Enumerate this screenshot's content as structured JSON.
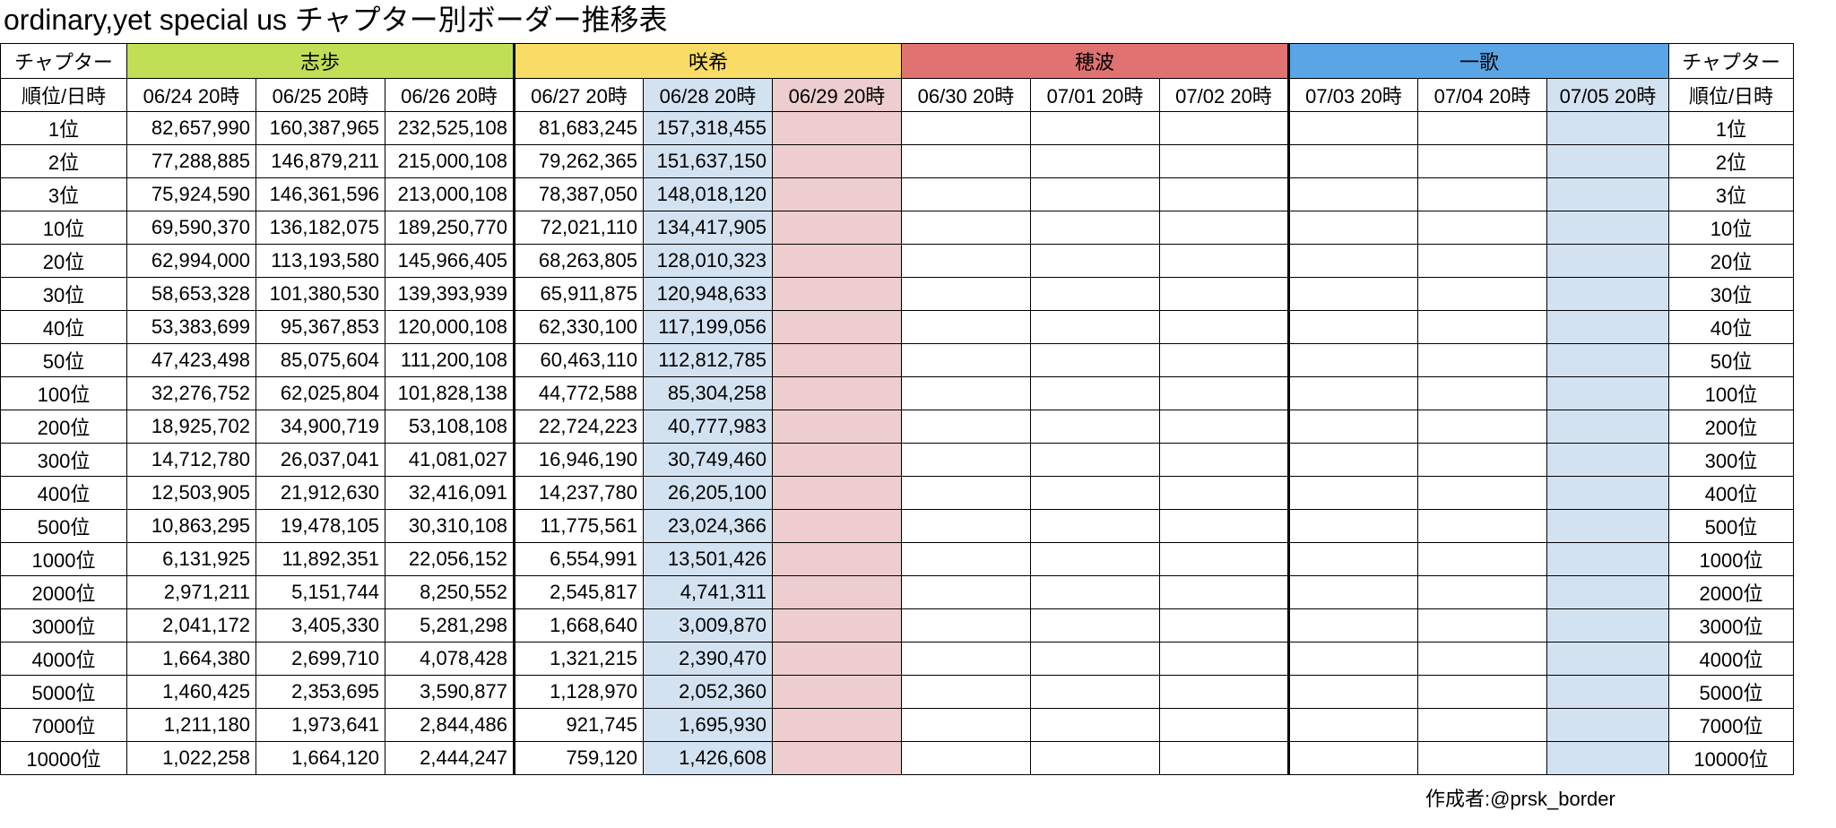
{
  "title": "ordinary,yet special us チャプター別ボーダー推移表",
  "header": {
    "chapter_label": "チャプター",
    "rank_date_label": "順位/日時"
  },
  "chapters": [
    {
      "name": "志歩",
      "color": "#c1df55",
      "span": 3
    },
    {
      "name": "咲希",
      "color": "#f9dc65",
      "span": 3
    },
    {
      "name": "穂波",
      "color": "#e07271",
      "span": 3
    },
    {
      "name": "一歌",
      "color": "#5aa5e6",
      "span": 3
    }
  ],
  "dates": [
    "06/24 20時",
    "06/25 20時",
    "06/26 20時",
    "06/27 20時",
    "06/28 20時",
    "06/29 20時",
    "06/30 20時",
    "07/01 20時",
    "07/02 20時",
    "07/03 20時",
    "07/04 20時",
    "07/05 20時"
  ],
  "rows": [
    {
      "rank": "1位",
      "values": [
        "82,657,990",
        "160,387,965",
        "232,525,108",
        "81,683,245",
        "157,318,455"
      ]
    },
    {
      "rank": "2位",
      "values": [
        "77,288,885",
        "146,879,211",
        "215,000,108",
        "79,262,365",
        "151,637,150"
      ]
    },
    {
      "rank": "3位",
      "values": [
        "75,924,590",
        "146,361,596",
        "213,000,108",
        "78,387,050",
        "148,018,120"
      ]
    },
    {
      "rank": "10位",
      "values": [
        "69,590,370",
        "136,182,075",
        "189,250,770",
        "72,021,110",
        "134,417,905"
      ]
    },
    {
      "rank": "20位",
      "values": [
        "62,994,000",
        "113,193,580",
        "145,966,405",
        "68,263,805",
        "128,010,323"
      ]
    },
    {
      "rank": "30位",
      "values": [
        "58,653,328",
        "101,380,530",
        "139,393,939",
        "65,911,875",
        "120,948,633"
      ]
    },
    {
      "rank": "40位",
      "values": [
        "53,383,699",
        "95,367,853",
        "120,000,108",
        "62,330,100",
        "117,199,056"
      ]
    },
    {
      "rank": "50位",
      "values": [
        "47,423,498",
        "85,075,604",
        "111,200,108",
        "60,463,110",
        "112,812,785"
      ]
    },
    {
      "rank": "100位",
      "values": [
        "32,276,752",
        "62,025,804",
        "101,828,138",
        "44,772,588",
        "85,304,258"
      ]
    },
    {
      "rank": "200位",
      "values": [
        "18,925,702",
        "34,900,719",
        "53,108,108",
        "22,724,223",
        "40,777,983"
      ]
    },
    {
      "rank": "300位",
      "values": [
        "14,712,780",
        "26,037,041",
        "41,081,027",
        "16,946,190",
        "30,749,460"
      ]
    },
    {
      "rank": "400位",
      "values": [
        "12,503,905",
        "21,912,630",
        "32,416,091",
        "14,237,780",
        "26,205,100"
      ]
    },
    {
      "rank": "500位",
      "values": [
        "10,863,295",
        "19,478,105",
        "30,310,108",
        "11,775,561",
        "23,024,366"
      ]
    },
    {
      "rank": "1000位",
      "values": [
        "6,131,925",
        "11,892,351",
        "22,056,152",
        "6,554,991",
        "13,501,426"
      ]
    },
    {
      "rank": "2000位",
      "values": [
        "2,971,211",
        "5,151,744",
        "8,250,552",
        "2,545,817",
        "4,741,311"
      ]
    },
    {
      "rank": "3000位",
      "values": [
        "2,041,172",
        "3,405,330",
        "5,281,298",
        "1,668,640",
        "3,009,870"
      ]
    },
    {
      "rank": "4000位",
      "values": [
        "1,664,380",
        "2,699,710",
        "4,078,428",
        "1,321,215",
        "2,390,470"
      ]
    },
    {
      "rank": "5000位",
      "values": [
        "1,460,425",
        "2,353,695",
        "3,590,877",
        "1,128,970",
        "2,052,360"
      ]
    },
    {
      "rank": "7000位",
      "values": [
        "1,211,180",
        "1,973,641",
        "2,844,486",
        "921,745",
        "1,695,930"
      ]
    },
    {
      "rank": "10000位",
      "values": [
        "1,022,258",
        "1,664,120",
        "2,444,247",
        "759,120",
        "1,426,608"
      ]
    }
  ],
  "highlight_colors": {
    "current": "#d3e2f1",
    "next": "#edcdcd",
    "final": "#d3e2f1"
  },
  "footer": "作成者:@prsk_border"
}
